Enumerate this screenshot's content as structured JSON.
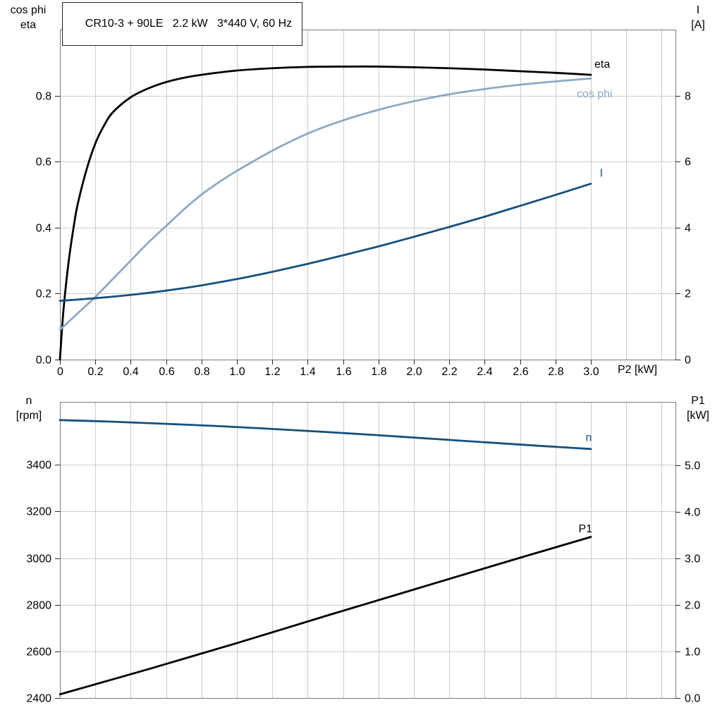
{
  "colors": {
    "grid": "#cccccc",
    "frame": "#7a7a7a",
    "tick": "#2b2b2b",
    "eta": "#000000",
    "cos_phi": "#8da9c4",
    "current": "#17507c",
    "speed": "#17507c",
    "p1": "#000000"
  },
  "chart_data": [
    {
      "type": "line",
      "title": "CR10-3 + 90LE   2.2 kW   3*440 V, 60 Hz",
      "xlabel": "P2 [kW]",
      "ylabel_left": [
        "cos phi",
        "eta"
      ],
      "ylabel_right": [
        "I",
        "[A]"
      ],
      "xlim": [
        0,
        3.478
      ],
      "xgrid_step": 0.2,
      "grid": true,
      "xticks": [
        0,
        0.2,
        0.4,
        0.6,
        0.8,
        1.0,
        1.2,
        1.4,
        1.6,
        1.8,
        2.0,
        2.2,
        2.4,
        2.6,
        2.8,
        3.0
      ],
      "xtick_labels": [
        "0",
        "0.2",
        "0.4",
        "0.6",
        "0.8",
        "1.0",
        "1.2",
        "1.4",
        "1.6",
        "1.8",
        "2.0",
        "2.2",
        "2.4",
        "2.6",
        "2.8",
        "3.0"
      ],
      "ylim_left": [
        0,
        1.0
      ],
      "yticks_left": [
        0,
        0.2,
        0.4,
        0.6,
        0.8
      ],
      "ytick_labels_left": [
        "0.0",
        "0.2",
        "0.4",
        "0.6",
        "0.8"
      ],
      "ylim_right": [
        0,
        10
      ],
      "yticks_right": [
        0,
        2,
        4,
        6,
        8
      ],
      "ytick_labels_right": [
        "0",
        "2",
        "4",
        "6",
        "8"
      ],
      "series": [
        {
          "name": "eta",
          "axis": "left",
          "color": "#000000",
          "label_at": [
            3.02,
            0.885
          ],
          "x": [
            0,
            0.02,
            0.05,
            0.08,
            0.1,
            0.15,
            0.2,
            0.25,
            0.3,
            0.4,
            0.5,
            0.6,
            0.7,
            0.8,
            1.0,
            1.2,
            1.4,
            1.6,
            1.8,
            2.0,
            2.2,
            2.4,
            2.6,
            2.8,
            3.0
          ],
          "y": [
            0,
            0.15,
            0.3,
            0.41,
            0.47,
            0.575,
            0.655,
            0.71,
            0.75,
            0.795,
            0.822,
            0.841,
            0.854,
            0.863,
            0.876,
            0.883,
            0.887,
            0.888,
            0.888,
            0.886,
            0.883,
            0.879,
            0.874,
            0.869,
            0.863
          ]
        },
        {
          "name": "cos phi",
          "axis": "left",
          "color": "#8da9c4",
          "label_at": [
            2.92,
            0.795
          ],
          "x": [
            0,
            0.1,
            0.2,
            0.3,
            0.4,
            0.5,
            0.6,
            0.7,
            0.8,
            0.9,
            1.0,
            1.2,
            1.4,
            1.6,
            1.8,
            2.0,
            2.2,
            2.4,
            2.6,
            2.8,
            3.0
          ],
          "y": [
            0.09,
            0.14,
            0.19,
            0.245,
            0.3,
            0.355,
            0.405,
            0.455,
            0.5,
            0.538,
            0.572,
            0.633,
            0.685,
            0.725,
            0.757,
            0.783,
            0.804,
            0.82,
            0.833,
            0.843,
            0.852
          ]
        },
        {
          "name": "I",
          "axis": "right",
          "color": "#17507c",
          "label_at": [
            3.05,
            5.55
          ],
          "x": [
            0,
            0.2,
            0.4,
            0.6,
            0.8,
            1.0,
            1.2,
            1.4,
            1.6,
            1.8,
            2.0,
            2.2,
            2.4,
            2.6,
            2.8,
            3.0
          ],
          "y": [
            1.78,
            1.86,
            1.96,
            2.09,
            2.25,
            2.44,
            2.66,
            2.9,
            3.16,
            3.43,
            3.72,
            4.02,
            4.33,
            4.66,
            4.99,
            5.33
          ]
        }
      ]
    },
    {
      "type": "line",
      "title": "",
      "xlabel": "",
      "ylabel_left": [
        "n",
        "[rpm]"
      ],
      "ylabel_right": [
        "P1",
        "[kW]"
      ],
      "xlim": [
        0,
        3.478
      ],
      "xgrid_step": 0.2,
      "grid": true,
      "xticks": [],
      "xtick_labels": [],
      "ylim_left": [
        2400,
        3670
      ],
      "yticks_left": [
        2400,
        2600,
        2800,
        3000,
        3200,
        3400
      ],
      "ytick_labels_left": [
        "2400",
        "2600",
        "2800",
        "3000",
        "3200",
        "3400"
      ],
      "ylim_right": [
        0,
        6.36
      ],
      "yticks_right": [
        0,
        1,
        2,
        3,
        4,
        5
      ],
      "ytick_labels_right": [
        "0.0",
        "1.0",
        "2.0",
        "3.0",
        "4.0",
        "5.0"
      ],
      "series": [
        {
          "name": "n",
          "axis": "left",
          "color": "#17507c",
          "label_at": [
            2.97,
            3502
          ],
          "x": [
            0,
            0.3,
            0.6,
            0.9,
            1.2,
            1.5,
            1.8,
            2.1,
            2.4,
            2.7,
            3.0
          ],
          "y": [
            3592,
            3585,
            3576,
            3566,
            3554,
            3541,
            3527,
            3512,
            3497,
            3482,
            3468
          ]
        },
        {
          "name": "P1",
          "axis": "right",
          "color": "#000000",
          "label_at": [
            2.93,
            3.56
          ],
          "x": [
            0,
            0.5,
            1.0,
            1.5,
            2.0,
            2.5,
            3.0
          ],
          "y": [
            0.08,
            0.62,
            1.18,
            1.76,
            2.33,
            2.9,
            3.46
          ]
        }
      ]
    }
  ]
}
